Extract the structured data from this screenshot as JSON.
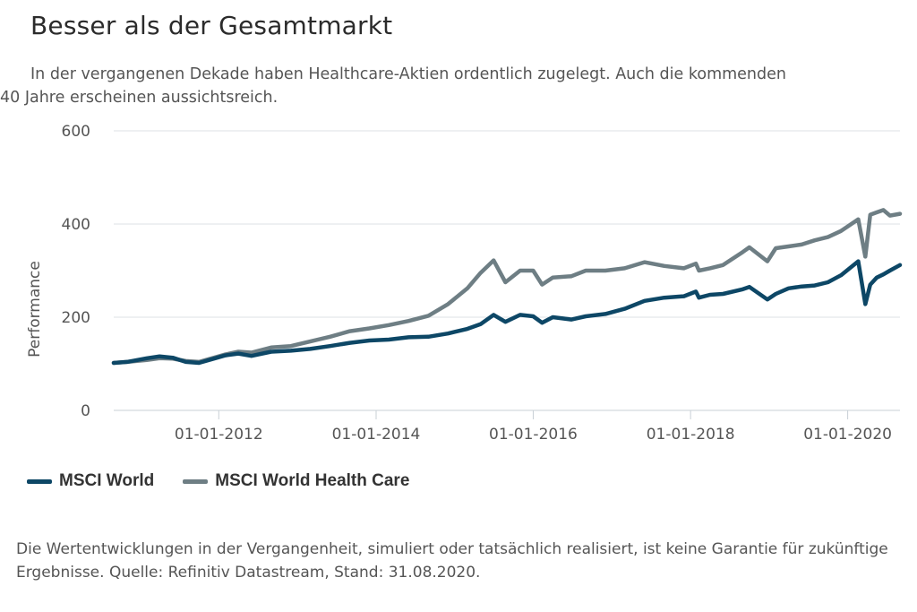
{
  "header": {
    "title": "Besser als der Gesamtmarkt",
    "subtitle": "In der vergangenen Dekade haben Healthcare-Aktien ordentlich zugelegt. Auch die kommenden 40 Jahre erscheinen aussichtsreich."
  },
  "footer": {
    "note": "Die Wertentwicklungen in der Vergangenheit, simuliert oder tatsächlich realisiert, ist keine Garantie für zukünftige Ergebnisse. Quelle: Refinitiv Datastream, Stand: 31.08.2020."
  },
  "colors": {
    "msci_world": "#0d4766",
    "msci_world_health_care": "#6e7e84",
    "grid": "#dde2e6",
    "axis_text": "#555555"
  },
  "chart_data": {
    "type": "line",
    "ylabel": "Performance",
    "xlabel": "",
    "ylim": [
      0,
      600
    ],
    "y_ticks": [
      "0",
      "200",
      "400",
      "600"
    ],
    "x_tick_labels": [
      "01-01-2012",
      "01-01-2014",
      "01-01-2016",
      "01-01-2018",
      "01-01-2020"
    ],
    "x_range": [
      "2010-08-31",
      "2020-08-31"
    ],
    "grid": true,
    "legend_position": "bottom-left",
    "series": [
      {
        "name": "MSCI World",
        "x": [
          "2010-08-31",
          "2010-11-01",
          "2011-02-01",
          "2011-04-01",
          "2011-06-01",
          "2011-08-01",
          "2011-10-01",
          "2011-12-01",
          "2012-02-01",
          "2012-04-01",
          "2012-06-01",
          "2012-09-01",
          "2012-12-01",
          "2013-03-01",
          "2013-06-01",
          "2013-09-01",
          "2013-12-01",
          "2014-03-01",
          "2014-06-01",
          "2014-09-01",
          "2014-12-01",
          "2015-03-01",
          "2015-05-01",
          "2015-07-01",
          "2015-08-25",
          "2015-11-01",
          "2016-01-01",
          "2016-02-11",
          "2016-04-01",
          "2016-06-27",
          "2016-09-01",
          "2016-12-01",
          "2017-03-01",
          "2017-06-01",
          "2017-09-01",
          "2017-12-01",
          "2018-01-26",
          "2018-02-09",
          "2018-04-01",
          "2018-06-01",
          "2018-09-01",
          "2018-10-01",
          "2018-12-24",
          "2019-02-01",
          "2019-04-01",
          "2019-06-01",
          "2019-08-01",
          "2019-10-01",
          "2019-12-01",
          "2020-02-19",
          "2020-03-23",
          "2020-04-15",
          "2020-05-15",
          "2020-06-15",
          "2020-07-15",
          "2020-08-31"
        ],
        "values": [
          102,
          104,
          112,
          116,
          113,
          104,
          102,
          110,
          118,
          122,
          117,
          126,
          128,
          132,
          138,
          145,
          150,
          152,
          157,
          158,
          165,
          175,
          185,
          205,
          190,
          205,
          202,
          188,
          200,
          195,
          202,
          207,
          218,
          235,
          242,
          245,
          255,
          242,
          248,
          250,
          260,
          265,
          238,
          250,
          262,
          266,
          268,
          275,
          290,
          320,
          228,
          270,
          285,
          292,
          300,
          312
        ]
      },
      {
        "name": "MSCI World Health Care",
        "x": [
          "2010-08-31",
          "2010-11-01",
          "2011-02-01",
          "2011-04-01",
          "2011-06-01",
          "2011-08-01",
          "2011-10-01",
          "2011-12-01",
          "2012-02-01",
          "2012-04-01",
          "2012-06-01",
          "2012-09-01",
          "2012-12-01",
          "2013-03-01",
          "2013-06-01",
          "2013-09-01",
          "2013-12-01",
          "2014-03-01",
          "2014-06-01",
          "2014-09-01",
          "2014-12-01",
          "2015-03-01",
          "2015-05-01",
          "2015-07-01",
          "2015-08-25",
          "2015-11-01",
          "2016-01-01",
          "2016-02-11",
          "2016-04-01",
          "2016-06-27",
          "2016-09-01",
          "2016-12-01",
          "2017-03-01",
          "2017-06-01",
          "2017-09-01",
          "2017-12-01",
          "2018-01-26",
          "2018-02-09",
          "2018-04-01",
          "2018-06-01",
          "2018-09-01",
          "2018-10-01",
          "2018-12-24",
          "2019-02-01",
          "2019-04-01",
          "2019-06-01",
          "2019-08-01",
          "2019-10-01",
          "2019-12-01",
          "2020-02-19",
          "2020-03-23",
          "2020-04-15",
          "2020-05-15",
          "2020-06-15",
          "2020-07-15",
          "2020-08-31"
        ],
        "values": [
          102,
          104,
          108,
          112,
          111,
          106,
          104,
          112,
          120,
          126,
          124,
          135,
          138,
          148,
          158,
          170,
          176,
          183,
          192,
          203,
          228,
          262,
          295,
          322,
          275,
          300,
          300,
          270,
          285,
          288,
          300,
          300,
          305,
          318,
          310,
          305,
          315,
          300,
          305,
          312,
          340,
          350,
          320,
          348,
          352,
          356,
          365,
          372,
          385,
          410,
          330,
          420,
          425,
          430,
          418,
          422
        ]
      }
    ]
  }
}
